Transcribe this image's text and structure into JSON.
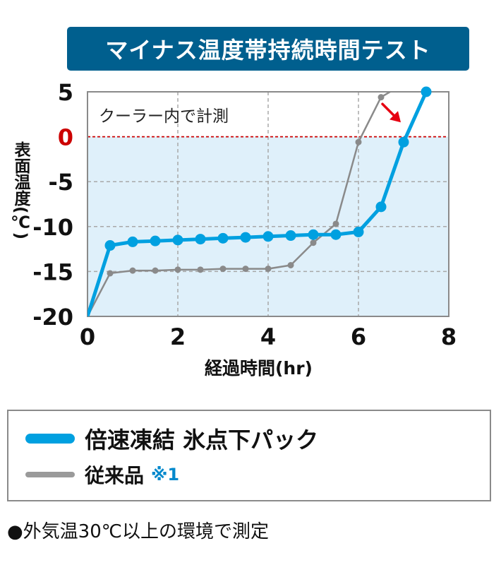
{
  "title": "マイナス温度帯持続時間テスト",
  "ylabel": "表面温度(℃)",
  "xlabel": "経過時間(hr)",
  "annotation": "クーラー内で計測",
  "footnote": "●外気温30℃以上の環境で測定",
  "colors": {
    "primary": "#00a0e0",
    "secondary": "#8a8a8a",
    "zero_line": "#cc0000",
    "plot_fill": "#dff0fa",
    "arrow": "#e60012",
    "banner": "#005f8e"
  },
  "legend": {
    "primary": "倍速凍結 氷点下パック",
    "secondary": "従来品",
    "secondary_note": "※1"
  },
  "chart_data": {
    "type": "line",
    "xlim": [
      0,
      8
    ],
    "ylim": [
      -20,
      5
    ],
    "x_ticks": [
      "0",
      "2",
      "4",
      "6",
      "8"
    ],
    "y_ticks": [
      "5",
      "0",
      "-5",
      "-10",
      "-15",
      "-20"
    ],
    "highlight_tick": "0",
    "grid": true,
    "series": [
      {
        "name": "倍速凍結 氷点下パック",
        "points": [
          [
            0,
            -20
          ],
          [
            0.5,
            -12.1
          ],
          [
            1,
            -11.7
          ],
          [
            1.5,
            -11.6
          ],
          [
            2,
            -11.5
          ],
          [
            2.5,
            -11.4
          ],
          [
            3,
            -11.3
          ],
          [
            3.5,
            -11.2
          ],
          [
            4,
            -11.1
          ],
          [
            4.5,
            -11.0
          ],
          [
            5,
            -10.9
          ],
          [
            5.5,
            -10.9
          ],
          [
            6,
            -10.6
          ],
          [
            6.5,
            -7.8
          ],
          [
            7,
            -0.6
          ],
          [
            7.5,
            5
          ]
        ]
      },
      {
        "name": "従来品",
        "points": [
          [
            0,
            -20
          ],
          [
            0.5,
            -15.2
          ],
          [
            1,
            -14.9
          ],
          [
            1.5,
            -14.9
          ],
          [
            2,
            -14.8
          ],
          [
            2.5,
            -14.8
          ],
          [
            3,
            -14.7
          ],
          [
            3.5,
            -14.7
          ],
          [
            4,
            -14.7
          ],
          [
            4.5,
            -14.3
          ],
          [
            5,
            -11.8
          ],
          [
            5.5,
            -9.7
          ],
          [
            6,
            -0.6
          ],
          [
            6.5,
            4.4
          ],
          [
            6.7,
            5
          ]
        ]
      }
    ]
  }
}
